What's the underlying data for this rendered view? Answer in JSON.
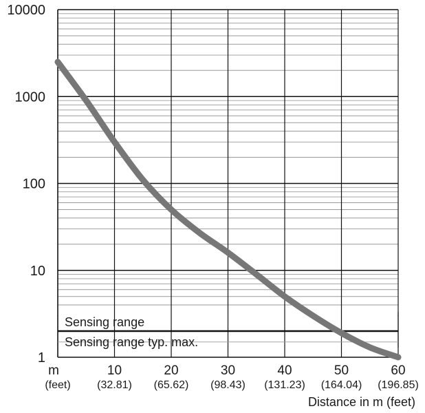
{
  "chart_data": {
    "type": "line",
    "title": "",
    "xlabel": "Distance in m (feet)",
    "ylabel": "",
    "x_unit_label": "m",
    "x_unit_sub": "(feet)",
    "xlim": [
      0,
      60
    ],
    "ylim": [
      1,
      10000
    ],
    "y_scale": "log",
    "grid": true,
    "x_ticks": [
      {
        "value": 10,
        "label": "10",
        "sub": "(32.81)"
      },
      {
        "value": 20,
        "label": "20",
        "sub": "(65.62)"
      },
      {
        "value": 30,
        "label": "30",
        "sub": "(98.43)"
      },
      {
        "value": 40,
        "label": "40",
        "sub": "(131.23)"
      },
      {
        "value": 50,
        "label": "50",
        "sub": "(164.04)"
      },
      {
        "value": 60,
        "label": "60",
        "sub": "(196.85)"
      }
    ],
    "y_ticks": [
      {
        "value": 1,
        "label": "1"
      },
      {
        "value": 10,
        "label": "10"
      },
      {
        "value": 100,
        "label": "100"
      },
      {
        "value": 1000,
        "label": "1000"
      },
      {
        "value": 10000,
        "label": "10000"
      }
    ],
    "reference_line": {
      "y": 2,
      "label_above": "Sensing range",
      "label_below": "Sensing range typ. max."
    },
    "series": [
      {
        "x": [
          0,
          5,
          10,
          15,
          20,
          25,
          30,
          35,
          40,
          45,
          50,
          55,
          60
        ],
        "y": [
          2500,
          900,
          300,
          110,
          50,
          27,
          16,
          9,
          5,
          3,
          1.9,
          1.3,
          1
        ]
      }
    ],
    "colors": {
      "curve": "#777777",
      "grid_major": "#111111",
      "grid_minor": "#999999",
      "reference": "#111111"
    }
  }
}
